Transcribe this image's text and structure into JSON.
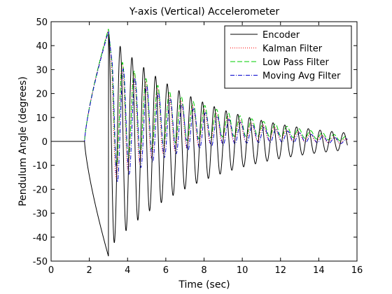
{
  "chart_data": {
    "type": "line",
    "title": "Y-axis (Vertical) Accelerometer",
    "xlabel": "Time (sec)",
    "ylabel": "Pendulum Angle (degrees)",
    "xlim": [
      0,
      16
    ],
    "ylim": [
      -50,
      50
    ],
    "xticks": [
      0,
      2,
      4,
      6,
      8,
      10,
      12,
      14,
      16
    ],
    "yticks": [
      -50,
      -40,
      -30,
      -20,
      -10,
      0,
      10,
      20,
      30,
      40,
      50
    ],
    "grid": false,
    "legend_position": "top-right",
    "series": [
      {
        "name": "Encoder",
        "color": "#000000",
        "dash": "solid",
        "signal": {
          "baseline_until": 1.75,
          "initial_swing": {
            "from": 1.75,
            "to": 3.0,
            "peak": -48
          },
          "oscillation": {
            "start": 3.0,
            "end": 15.5,
            "period": 0.615,
            "initial_amplitude": 45,
            "final_amplitude": 3.5
          }
        }
      },
      {
        "name": "Kalman Filter",
        "color": "#ff0000",
        "dash": "dotted",
        "signal": {
          "baseline_until": 1.75,
          "initial_swing": {
            "from": 1.75,
            "to": 3.0,
            "peak": 47
          },
          "oscillation": {
            "start": 3.0,
            "end": 15.5,
            "period": 0.615,
            "offset": 10,
            "offset_final": 0,
            "initial_amplitude": 28,
            "final_amplitude": 1,
            "phase_lag": 0.1
          }
        }
      },
      {
        "name": "Low Pass Filter",
        "color": "#00cc00",
        "dash": "dashed",
        "signal": {
          "baseline_until": 1.75,
          "initial_swing": {
            "from": 1.75,
            "to": 3.0,
            "peak": 47
          },
          "oscillation": {
            "start": 3.0,
            "end": 15.5,
            "period": 0.615,
            "offset": 13,
            "offset_final": 1,
            "initial_amplitude": 25,
            "final_amplitude": 1,
            "phase_lag": 0.12
          }
        }
      },
      {
        "name": "Moving Avg Filter",
        "color": "#0000cc",
        "dash": "dashdot",
        "signal": {
          "baseline_until": 1.75,
          "initial_swing": {
            "from": 1.75,
            "to": 3.0,
            "peak": 46
          },
          "oscillation": {
            "start": 3.0,
            "end": 15.5,
            "period": 0.615,
            "offset": 8,
            "offset_final": 0,
            "initial_amplitude": 28,
            "final_amplitude": 1,
            "phase_lag": 0.16
          }
        }
      }
    ]
  }
}
